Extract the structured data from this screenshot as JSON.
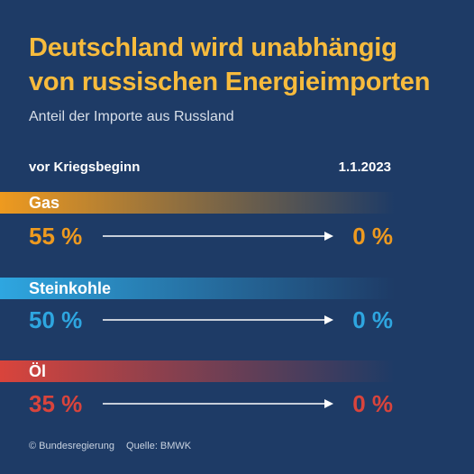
{
  "header": {
    "title_line1": "Deutschland wird unabhängig",
    "title_line2": "von russischen Energieimporten",
    "subtitle": "Anteil der Importe aus Russland"
  },
  "columns": {
    "before": "vor Kriegsbeginn",
    "after": "1.1.2023"
  },
  "footer": {
    "copyright": "© Bundesregierung",
    "source": "Quelle: BMWK"
  },
  "chart_data": {
    "type": "table",
    "title": "Deutschland wird unabhängig von russischen Energieimporten",
    "subtitle": "Anteil der Importe aus Russland",
    "columns": [
      "vor Kriegsbeginn",
      "1.1.2023"
    ],
    "unit": "%",
    "rows": [
      {
        "name": "Gas",
        "before": 55,
        "after": 0,
        "before_label": "55 %",
        "after_label": "0 %",
        "color": "#ee9a1f"
      },
      {
        "name": "Steinkohle",
        "before": 50,
        "after": 0,
        "before_label": "50 %",
        "after_label": "0 %",
        "color": "#2ea6e0"
      },
      {
        "name": "Öl",
        "before": 35,
        "after": 0,
        "before_label": "35 %",
        "after_label": "0 %",
        "color": "#d9443c"
      }
    ]
  }
}
